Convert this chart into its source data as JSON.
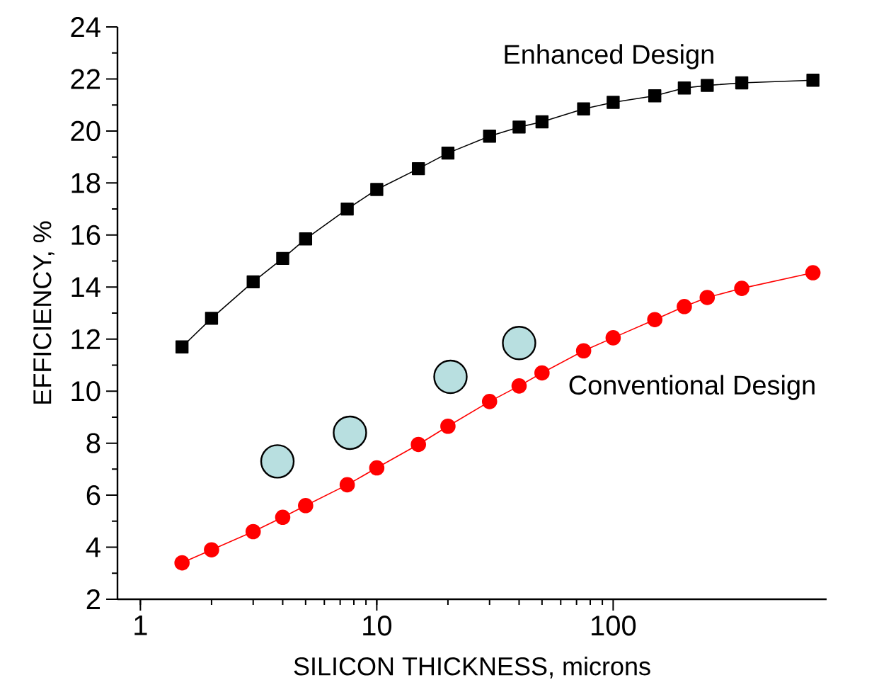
{
  "chart_data": {
    "type": "line",
    "xlabel": "SILICON THICKNESS, microns",
    "ylabel": "EFFICIENCY, %",
    "log": "x",
    "xlim": [
      0.8,
      800
    ],
    "ylim": [
      2,
      24
    ],
    "xticks": [
      1,
      10,
      100
    ],
    "yticks": [
      2,
      4,
      6,
      8,
      10,
      12,
      14,
      16,
      18,
      20,
      22,
      24
    ],
    "line_style": "solid",
    "series": [
      {
        "name": "Enhanced Design",
        "color": "#000000",
        "marker": "square",
        "x": [
          1.5,
          2,
          3,
          4,
          5,
          7.5,
          10,
          15,
          20,
          30,
          40,
          50,
          75,
          100,
          150,
          200,
          250,
          350,
          700
        ],
        "values": [
          11.7,
          12.8,
          14.2,
          15.1,
          15.85,
          17.0,
          17.75,
          18.55,
          19.15,
          19.8,
          20.15,
          20.35,
          20.85,
          21.1,
          21.35,
          21.65,
          21.75,
          21.85,
          21.95
        ]
      },
      {
        "name": "Conventional Design",
        "color": "#ff0000",
        "marker": "circle",
        "x": [
          1.5,
          2,
          3,
          4,
          5,
          7.5,
          10,
          15,
          20,
          30,
          40,
          50,
          75,
          100,
          150,
          200,
          250,
          350,
          700
        ],
        "values": [
          3.4,
          3.9,
          4.6,
          5.15,
          5.6,
          6.4,
          7.05,
          7.95,
          8.65,
          9.6,
          10.2,
          10.7,
          11.55,
          12.05,
          12.75,
          13.25,
          13.6,
          13.95,
          14.55
        ]
      },
      {
        "type": "scatter",
        "color": "#b8dfe0",
        "marker": "circle",
        "x": [
          3.8,
          7.7,
          20.5,
          40
        ],
        "values": [
          7.3,
          8.4,
          10.55,
          11.85
        ]
      }
    ]
  }
}
